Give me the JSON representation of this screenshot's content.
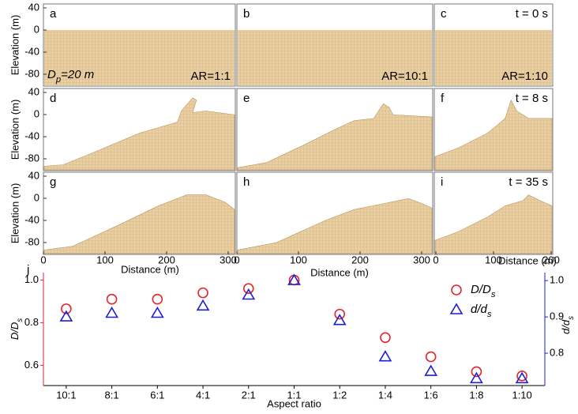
{
  "panels": [
    {
      "label": "a",
      "size": "Dp=20 m",
      "aspect": "AR=1:1"
    },
    {
      "label": "b",
      "aspect": "AR=10:1"
    },
    {
      "label": "c",
      "time": "t = 0 s",
      "aspect": "AR=1:10"
    },
    {
      "label": "d"
    },
    {
      "label": "e"
    },
    {
      "label": "f",
      "time": "t = 8 s"
    },
    {
      "label": "g"
    },
    {
      "label": "h"
    },
    {
      "label": "i",
      "time": "t = 35 s"
    }
  ],
  "elevation_label": "Elevation (m)",
  "elevation_ticks": [
    40,
    0,
    -40,
    -80
  ],
  "distance_label": "Distance (m)",
  "distance_ticks": [
    [
      0,
      100,
      200,
      300
    ],
    [
      0,
      100,
      200,
      300
    ],
    [
      0,
      100,
      200
    ]
  ],
  "chart_data": {
    "type": "scatter",
    "panel_label": "j",
    "categories": [
      "10:1",
      "8:1",
      "6:1",
      "4:1",
      "2:1",
      "1:1",
      "1:2",
      "1:4",
      "1:6",
      "1:8",
      "1:10"
    ],
    "xlabel": "Aspect ratio",
    "ylabel": "D/Ds",
    "y2label": "d/ds",
    "ylim": [
      0.505,
      1.035
    ],
    "yticks": [
      0.6,
      0.8,
      {
        "value": 1,
        "label": "1.0"
      }
    ],
    "y2lim": [
      0.711,
      1.022
    ],
    "y2ticks": [
      0.8,
      0.9,
      {
        "value": 1,
        "label": "1.0"
      }
    ],
    "ycolor": "#e3262d",
    "y2color": "#1f1fcf",
    "series": [
      {
        "name": "D/Ds",
        "color": "#e3262d",
        "marker": "circle",
        "values": [
          0.865,
          0.91,
          0.91,
          0.94,
          0.96,
          1.0,
          0.84,
          0.73,
          0.64,
          0.57,
          0.55
        ]
      },
      {
        "name": "d/ds",
        "color": "#1f1fcf",
        "marker": "triangle",
        "axis": "y2",
        "values": [
          0.9,
          0.91,
          0.91,
          0.93,
          0.96,
          1.0,
          0.89,
          0.79,
          0.75,
          0.73,
          0.73
        ]
      }
    ]
  }
}
